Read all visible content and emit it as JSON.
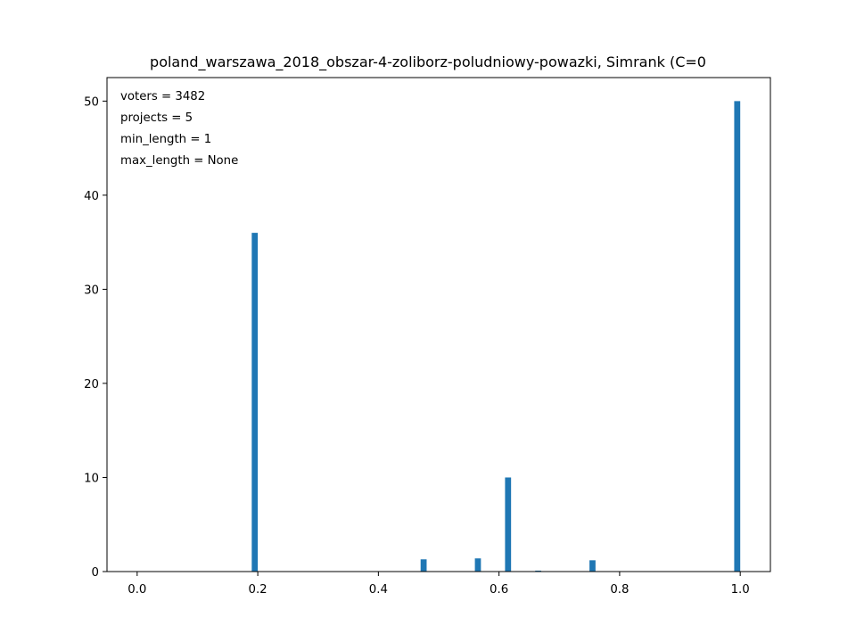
{
  "chart_data": {
    "type": "bar",
    "title": "poland_warszawa_2018_obszar-4-zoliborz-poludniowy-powazki, Simrank (C=0",
    "xlabel": "",
    "ylabel": "",
    "xlim": [
      -0.05,
      1.05
    ],
    "ylim": [
      0,
      52.5
    ],
    "xticks": [
      0.0,
      0.2,
      0.4,
      0.6,
      0.8,
      1.0
    ],
    "xtick_labels": [
      "0.0",
      "0.2",
      "0.4",
      "0.6",
      "0.8",
      "1.0"
    ],
    "yticks": [
      0,
      10,
      20,
      30,
      40,
      50
    ],
    "ytick_labels": [
      "0",
      "10",
      "20",
      "30",
      "40",
      "50"
    ],
    "bar_width": 0.01,
    "bar_color": "#1f77b4",
    "bars": [
      {
        "x": 0.195,
        "value": 36.0
      },
      {
        "x": 0.475,
        "value": 1.3
      },
      {
        "x": 0.565,
        "value": 1.4
      },
      {
        "x": 0.615,
        "value": 10.0
      },
      {
        "x": 0.665,
        "value": 0.1
      },
      {
        "x": 0.755,
        "value": 1.2
      },
      {
        "x": 0.995,
        "value": 50.0
      }
    ],
    "annotations": [
      "voters = 3482",
      "projects = 5",
      "min_length = 1",
      "max_length = None"
    ],
    "grid": false
  }
}
